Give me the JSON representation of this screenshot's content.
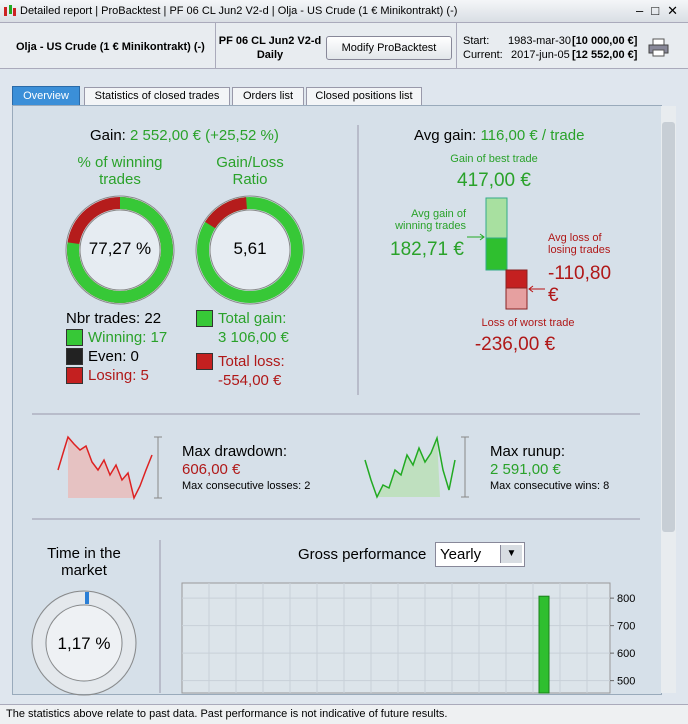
{
  "window": {
    "segments": [
      "Detailed report",
      "ProBacktest",
      "PF 06 CL Jun2 V2-d",
      "Olja - US Crude (1 € Minikontrakt) (-)"
    ]
  },
  "header": {
    "instrument": "Olja - US Crude (1 € Minikontrakt) (-)",
    "system": "PF 06 CL Jun2 V2-d",
    "timeframe": "Daily",
    "button": "Modify ProBacktest",
    "start_label": "Start:",
    "start_date": "1983-mar-30",
    "start_capital": "[10 000,00 €]",
    "current_label": "Current:",
    "current_date": "2017-jun-05",
    "current_capital": "[12 552,00 €]"
  },
  "tabs": [
    "Overview",
    "Statistics of closed trades",
    "Orders list",
    "Closed positions list"
  ],
  "overview": {
    "gain_label": "Gain:",
    "gain_value": "2 552,00 € (+25,52 %)",
    "winning_title": "% of winning trades",
    "winning_pct": "77,27 %",
    "ratio_title": "Gain/Loss Ratio",
    "ratio_value": "5,61",
    "nbr_trades": "Nbr trades: 22",
    "winning": "Winning: 17",
    "even": "Even: 0",
    "losing": "Losing: 5",
    "total_gain_label": "Total gain:",
    "total_gain": "3 106,00 €",
    "total_loss_label": "Total loss:",
    "total_loss": "-554,00 €",
    "avg_gain_label": "Avg gain:",
    "avg_gain": "116,00 € / trade",
    "best_label": "Gain of best trade",
    "best_value": "417,00 €",
    "avg_win_label": "Avg gain of winning trades",
    "avg_win_value": "182,71 €",
    "avg_loss_label": "Avg loss of losing trades",
    "avg_loss_value": "-110,80 €",
    "worst_label": "Loss of worst trade",
    "worst_value": "-236,00 €",
    "drawdown_label": "Max drawdown:",
    "drawdown_value": "606,00 €",
    "consec_losses": "Max consecutive losses: 2",
    "runup_label": "Max runup:",
    "runup_value": "2 591,00 €",
    "consec_wins": "Max consecutive wins: 8",
    "time_title": "Time in the market",
    "time_value": "1,17 %"
  },
  "gross_performance": {
    "title": "Gross performance",
    "period": "Yearly",
    "ylim": [
      455,
      855
    ],
    "yticks": [
      800,
      700,
      600,
      500
    ],
    "values": [
      807
    ],
    "color": "#2fbf2f"
  },
  "status": "The statistics above relate to past data. Past performance is not indicative of future results."
}
